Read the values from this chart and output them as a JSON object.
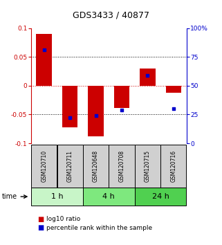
{
  "title": "GDS3433 / 40877",
  "samples": [
    "GSM120710",
    "GSM120711",
    "GSM120648",
    "GSM120708",
    "GSM120715",
    "GSM120716"
  ],
  "log10_ratio": [
    0.09,
    -0.072,
    -0.088,
    -0.038,
    0.03,
    -0.012
  ],
  "percentile_rank": [
    0.062,
    -0.055,
    -0.052,
    -0.042,
    0.018,
    -0.04
  ],
  "groups": [
    {
      "label": "1 h",
      "start": 0,
      "end": 2,
      "color": "#c8f5c8"
    },
    {
      "label": "4 h",
      "start": 2,
      "end": 4,
      "color": "#7ee87e"
    },
    {
      "label": "24 h",
      "start": 4,
      "end": 6,
      "color": "#50d050"
    }
  ],
  "ylim": [
    -0.1,
    0.1
  ],
  "yticks_left": [
    -0.1,
    -0.05,
    0,
    0.05,
    0.1
  ],
  "yticks_right_labels": [
    "0",
    "25",
    "50",
    "75",
    "100%"
  ],
  "yticks_right_vals": [
    -0.1,
    -0.05,
    0.0,
    0.05,
    0.1
  ],
  "bar_color": "#cc0000",
  "dot_color": "#0000cc",
  "zero_line_color": "#cc0000",
  "background_color": "#ffffff",
  "sample_box_color": "#d0d0d0",
  "bar_width": 0.6
}
